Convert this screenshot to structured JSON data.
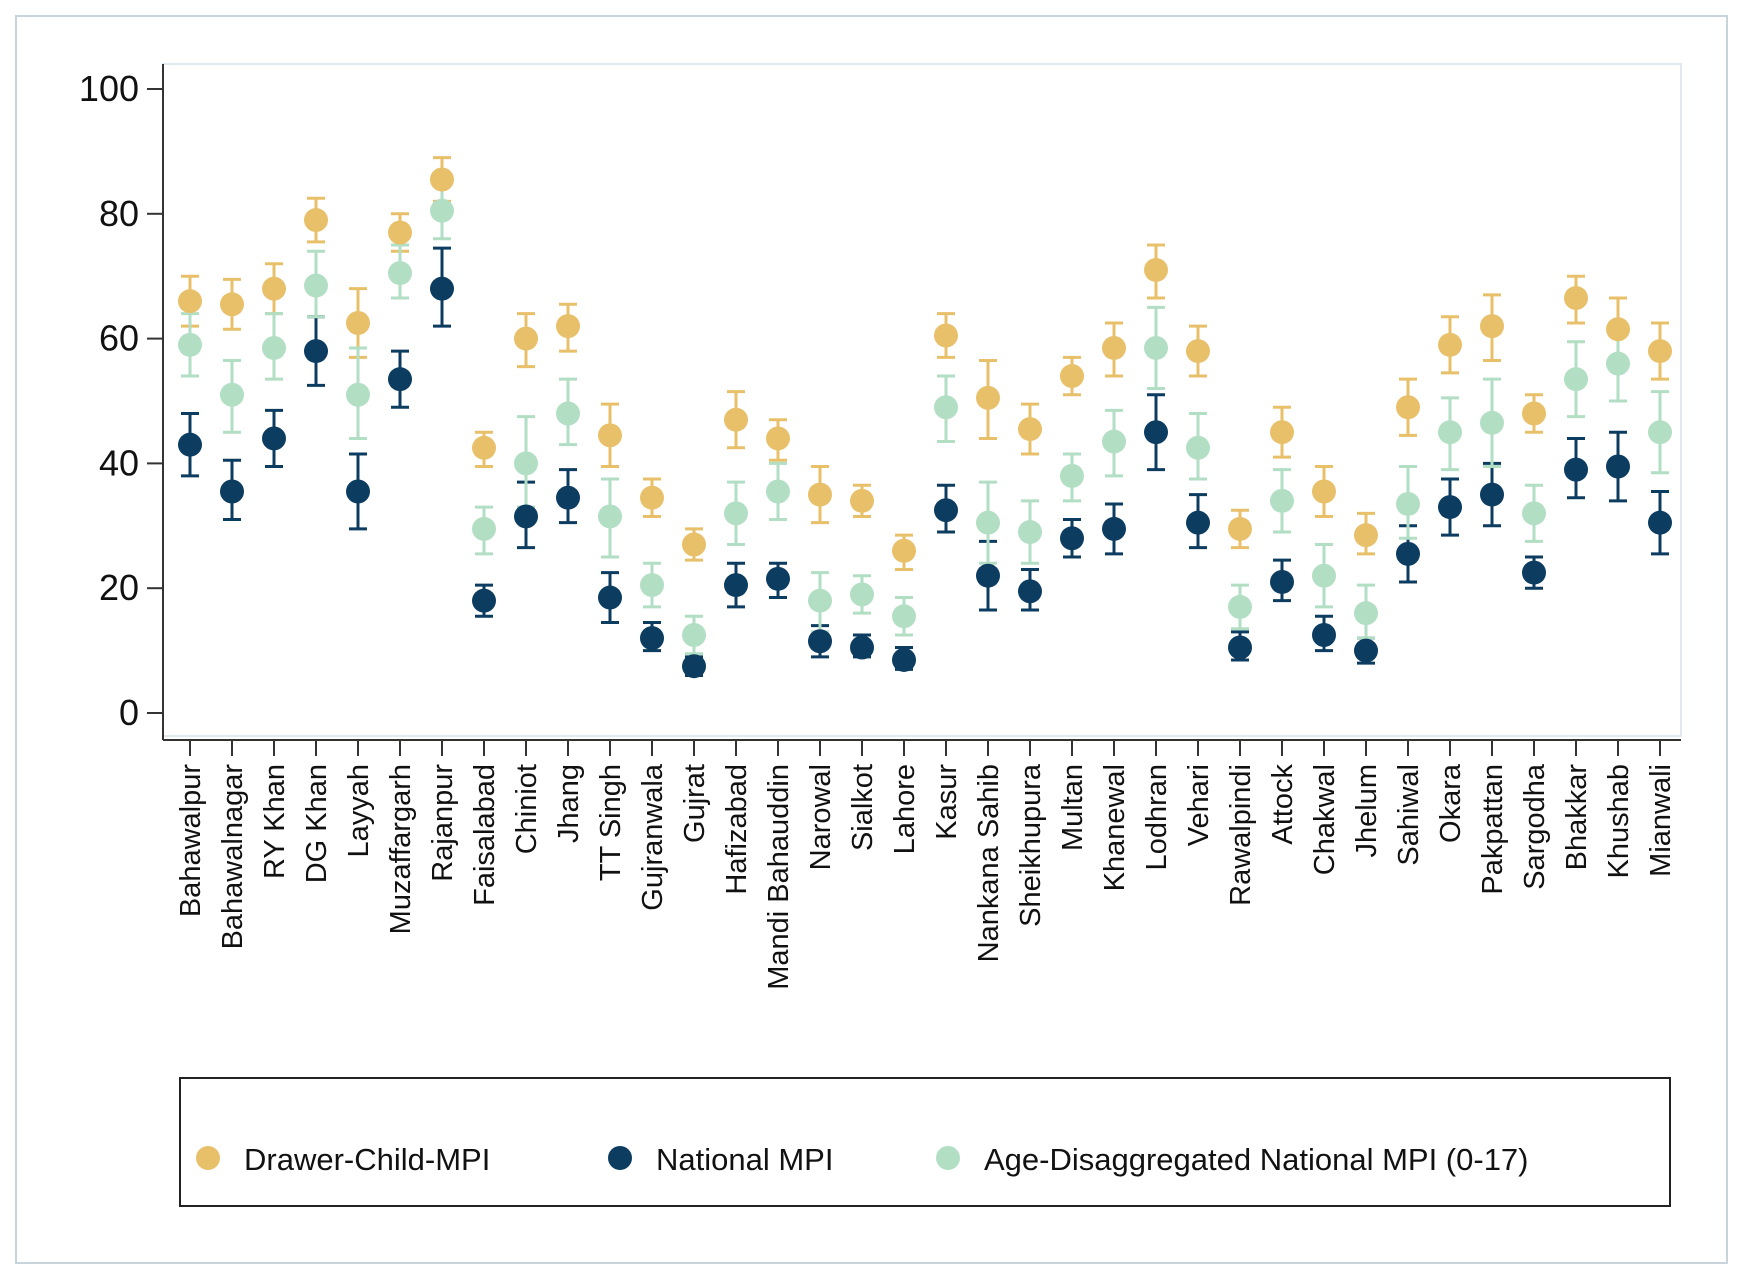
{
  "chart_data": {
    "type": "scatter",
    "title": "",
    "xlabel": "",
    "ylabel": "",
    "ylim": [
      0,
      100
    ],
    "yticks": [
      0,
      20,
      40,
      60,
      80,
      100
    ],
    "grid": false,
    "legend_position": "bottom",
    "colors": {
      "drawer": "#e8c06a",
      "national": "#0c3c60",
      "agedis": "#b2dec4",
      "axis": "#333333",
      "frame": "#c8d4dc"
    },
    "categories": [
      "Bahawalpur",
      "Bahawalnagar",
      "RY Khan",
      "DG Khan",
      "Layyah",
      "Muzaffargarh",
      "Rajanpur",
      "Faisalabad",
      "Chiniot",
      "Jhang",
      "TT Singh",
      "Gujranwala",
      "Gujrat",
      "Hafizabad",
      "Mandi Bahauddin",
      "Narowal",
      "Sialkot",
      "Lahore",
      "Kasur",
      "Nankana Sahib",
      "Sheikhupura",
      "Multan",
      "Khanewal",
      "Lodhran",
      "Vehari",
      "Rawalpindi",
      "Attock",
      "Chakwal",
      "Jhelum",
      "Sahiwal",
      "Okara",
      "Pakpattan",
      "Sargodha",
      "Bhakkar",
      "Khushab",
      "Mianwali"
    ],
    "series": [
      {
        "name": "Drawer-Child-MPI",
        "key": "drawer",
        "values": [
          66,
          65.5,
          68,
          79,
          62.5,
          77,
          85.5,
          42.5,
          60,
          62,
          44.5,
          34.5,
          27,
          47,
          44,
          35,
          34,
          26,
          60.5,
          50.5,
          45.5,
          54,
          58.5,
          71,
          58,
          29.5,
          45,
          35.5,
          28.5,
          49,
          59,
          62,
          48,
          66.5,
          61.5,
          58
        ],
        "lower": [
          62,
          61.5,
          64,
          75.5,
          57,
          74,
          82,
          39.5,
          55.5,
          58,
          39.5,
          31.5,
          24.5,
          42.5,
          40.5,
          30.5,
          31.5,
          23,
          57,
          44,
          41.5,
          51,
          54,
          66.5,
          54,
          26.5,
          41,
          31.5,
          25.5,
          44.5,
          54.5,
          56.5,
          45,
          62.5,
          56.5,
          53.5
        ],
        "upper": [
          70,
          69.5,
          72,
          82.5,
          68,
          80,
          89,
          45,
          64,
          65.5,
          49.5,
          37.5,
          29.5,
          51.5,
          47,
          39.5,
          36.5,
          28.5,
          64,
          56.5,
          49.5,
          57,
          62.5,
          75,
          62,
          32.5,
          49,
          39.5,
          32,
          53.5,
          63.5,
          67,
          51,
          70,
          66.5,
          62.5
        ]
      },
      {
        "name": "National MPI",
        "key": "national",
        "values": [
          43,
          35.5,
          44,
          58,
          35.5,
          53.5,
          68,
          18,
          31.5,
          34.5,
          18.5,
          12,
          7.5,
          20.5,
          21.5,
          11.5,
          10.5,
          8.5,
          32.5,
          22,
          19.5,
          28,
          29.5,
          45,
          30.5,
          10.5,
          21,
          12.5,
          10,
          25.5,
          33,
          35,
          22.5,
          39,
          39.5,
          30.5
        ],
        "lower": [
          38,
          31,
          39.5,
          52.5,
          29.5,
          49,
          62,
          15.5,
          26.5,
          30.5,
          14.5,
          10,
          6,
          17,
          18.5,
          9,
          9,
          7,
          29,
          16.5,
          16.5,
          25,
          25.5,
          39,
          26.5,
          8.5,
          18,
          10,
          8,
          21,
          28.5,
          30,
          20,
          34.5,
          34,
          25.5
        ],
        "upper": [
          48,
          40.5,
          48.5,
          63.5,
          41.5,
          58,
          74.5,
          20.5,
          37,
          39,
          22.5,
          14.5,
          9,
          24,
          24,
          14,
          12.5,
          10.5,
          36.5,
          27.5,
          23,
          31,
          33.5,
          51,
          35,
          13,
          24.5,
          15.5,
          12,
          30,
          37.5,
          40,
          25,
          44,
          45,
          35.5
        ]
      },
      {
        "name": "Age-Disaggregated National MPI (0-17)",
        "key": "agedis",
        "values": [
          59,
          51,
          58.5,
          68.5,
          51,
          70.5,
          80.5,
          29.5,
          40,
          48,
          31.5,
          20.5,
          12.5,
          32,
          35.5,
          18,
          19,
          15.5,
          49,
          30.5,
          29,
          38,
          43.5,
          58.5,
          42.5,
          17,
          34,
          22,
          16,
          33.5,
          45,
          46.5,
          32,
          53.5,
          56,
          45
        ],
        "lower": [
          54,
          45,
          53.5,
          63.5,
          44,
          66.5,
          76,
          25.5,
          33,
          43,
          25,
          17,
          9.5,
          27,
          31,
          13,
          16,
          12.5,
          43.5,
          24,
          24,
          34,
          38,
          52,
          37.5,
          13.5,
          29,
          17,
          12,
          28,
          39,
          39.5,
          27.5,
          47.5,
          50,
          38.5
        ],
        "upper": [
          64,
          56.5,
          64,
          74,
          58.5,
          75,
          85,
          33,
          47.5,
          53.5,
          37.5,
          24,
          15.5,
          37,
          40,
          22.5,
          22,
          18.5,
          54,
          37,
          34,
          41.5,
          48.5,
          65,
          48,
          20.5,
          39,
          27,
          20.5,
          39.5,
          50.5,
          53.5,
          36.5,
          59.5,
          62,
          51.5
        ]
      }
    ]
  }
}
